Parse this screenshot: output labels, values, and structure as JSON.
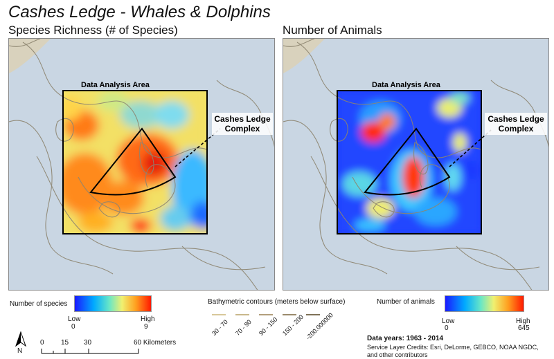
{
  "title": "Cashes Ledge - Whales & Dolphins",
  "left_panel": {
    "subtitle": "Species Richness (# of Species)",
    "area_label": "Data Analysis Area",
    "complex_label_line1": "Cashes Ledge",
    "complex_label_line2": "Complex"
  },
  "right_panel": {
    "subtitle": "Number of Animals",
    "area_label": "Data Analysis Area",
    "complex_label_line1": "Cashes Ledge",
    "complex_label_line2": "Complex"
  },
  "legend_species": {
    "title": "Number of species",
    "low_label": "Low",
    "low_value": "0",
    "high_label": "High",
    "high_value": "9"
  },
  "legend_animals": {
    "title": "Number of animals",
    "low_label": "Low",
    "low_value": "0",
    "high_label": "High",
    "high_value": "645"
  },
  "bathymetry": {
    "title": "Bathymetric contours (meters below surface)",
    "classes": [
      "30 - 70",
      "70 - 90",
      "90 - 150",
      "150 - 200",
      "-200.000000"
    ]
  },
  "scale_bar": {
    "ticks": [
      "0",
      "15",
      "30",
      "60 Kilometers"
    ]
  },
  "north_arrow": {
    "label": "N"
  },
  "data_years": "Data years: 1963 - 2014",
  "credits": "Service Layer Credits: Esri, DeLorme, GEBCO, NOAA NGDC, and other contributors",
  "colors": {
    "ocean": "#c7d4e2",
    "low": "#1a1aff",
    "high": "#ff1a00"
  }
}
